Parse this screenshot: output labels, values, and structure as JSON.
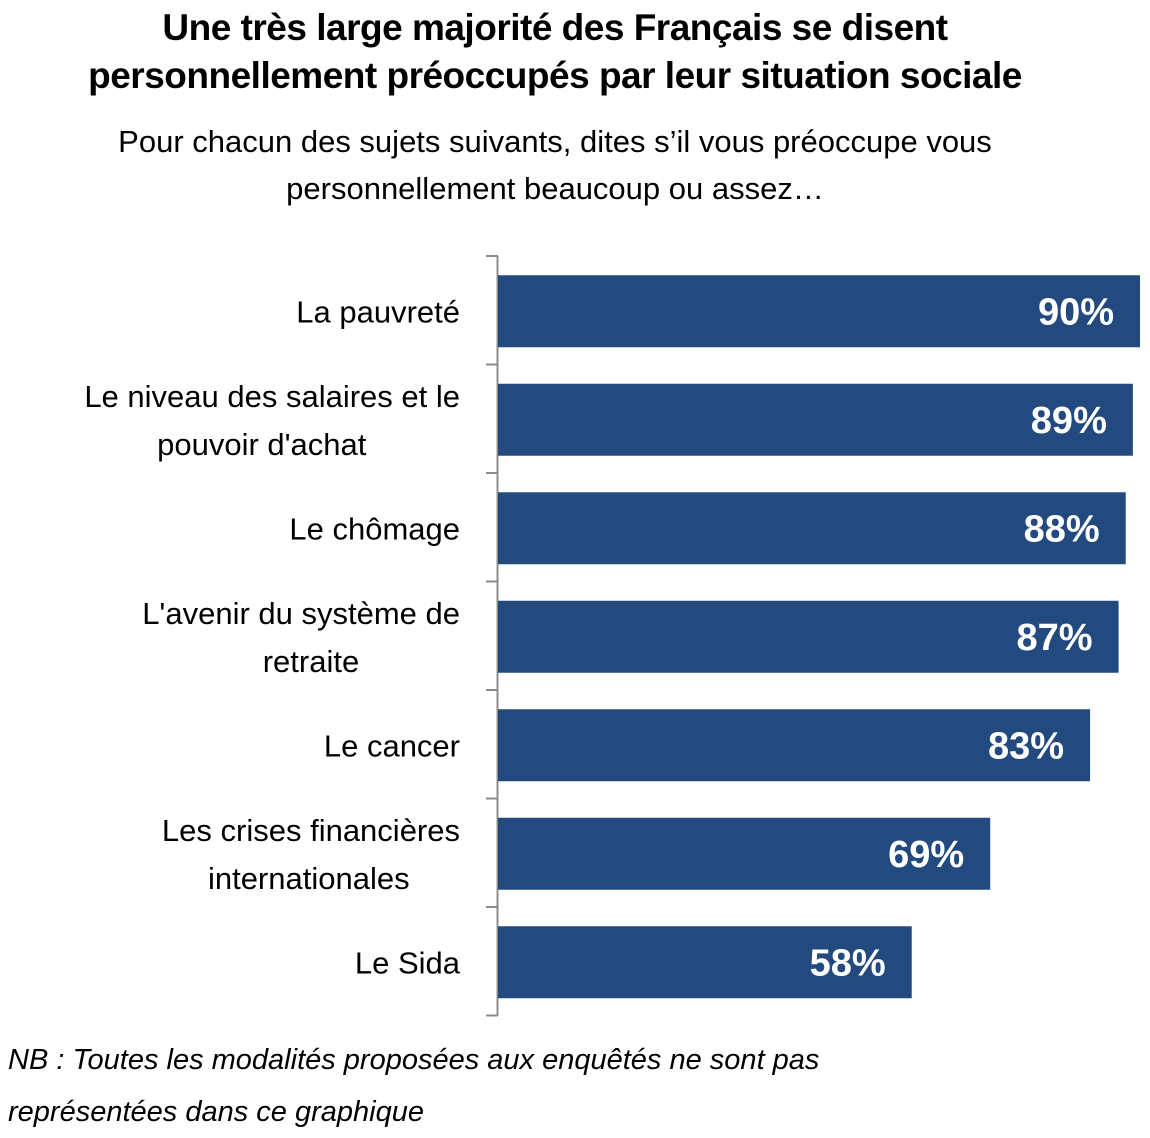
{
  "title_lines": [
    "Une très large majorité des Français se disent",
    "personnellement préoccupés par leur situation sociale"
  ],
  "subtitle_lines": [
    "Pour chacun des sujets suivants, dites s’il vous préoccupe vous",
    "personnellement beaucoup ou assez…"
  ],
  "note_lines": [
    "NB : Toutes les modalités proposées aux enquêtés ne sont pas",
    "représentées dans ce graphique"
  ],
  "chart_data": {
    "type": "bar",
    "orientation": "horizontal",
    "categories": [
      [
        "La pauvreté"
      ],
      [
        "Le niveau des salaires et le",
        "pouvoir d'achat"
      ],
      [
        "Le chômage"
      ],
      [
        "L'avenir du système de",
        "retraite"
      ],
      [
        "Le cancer"
      ],
      [
        "Les crises financières",
        "internationales"
      ],
      [
        "Le Sida"
      ]
    ],
    "values": [
      90,
      89,
      88,
      87,
      83,
      69,
      58
    ],
    "value_labels": [
      "90%",
      "89%",
      "88%",
      "87%",
      "83%",
      "69%",
      "58%"
    ],
    "xlim": [
      0,
      90
    ],
    "grid": false,
    "legend": "none",
    "bar_color": "#234a7f",
    "label_color": "#ffffff"
  }
}
